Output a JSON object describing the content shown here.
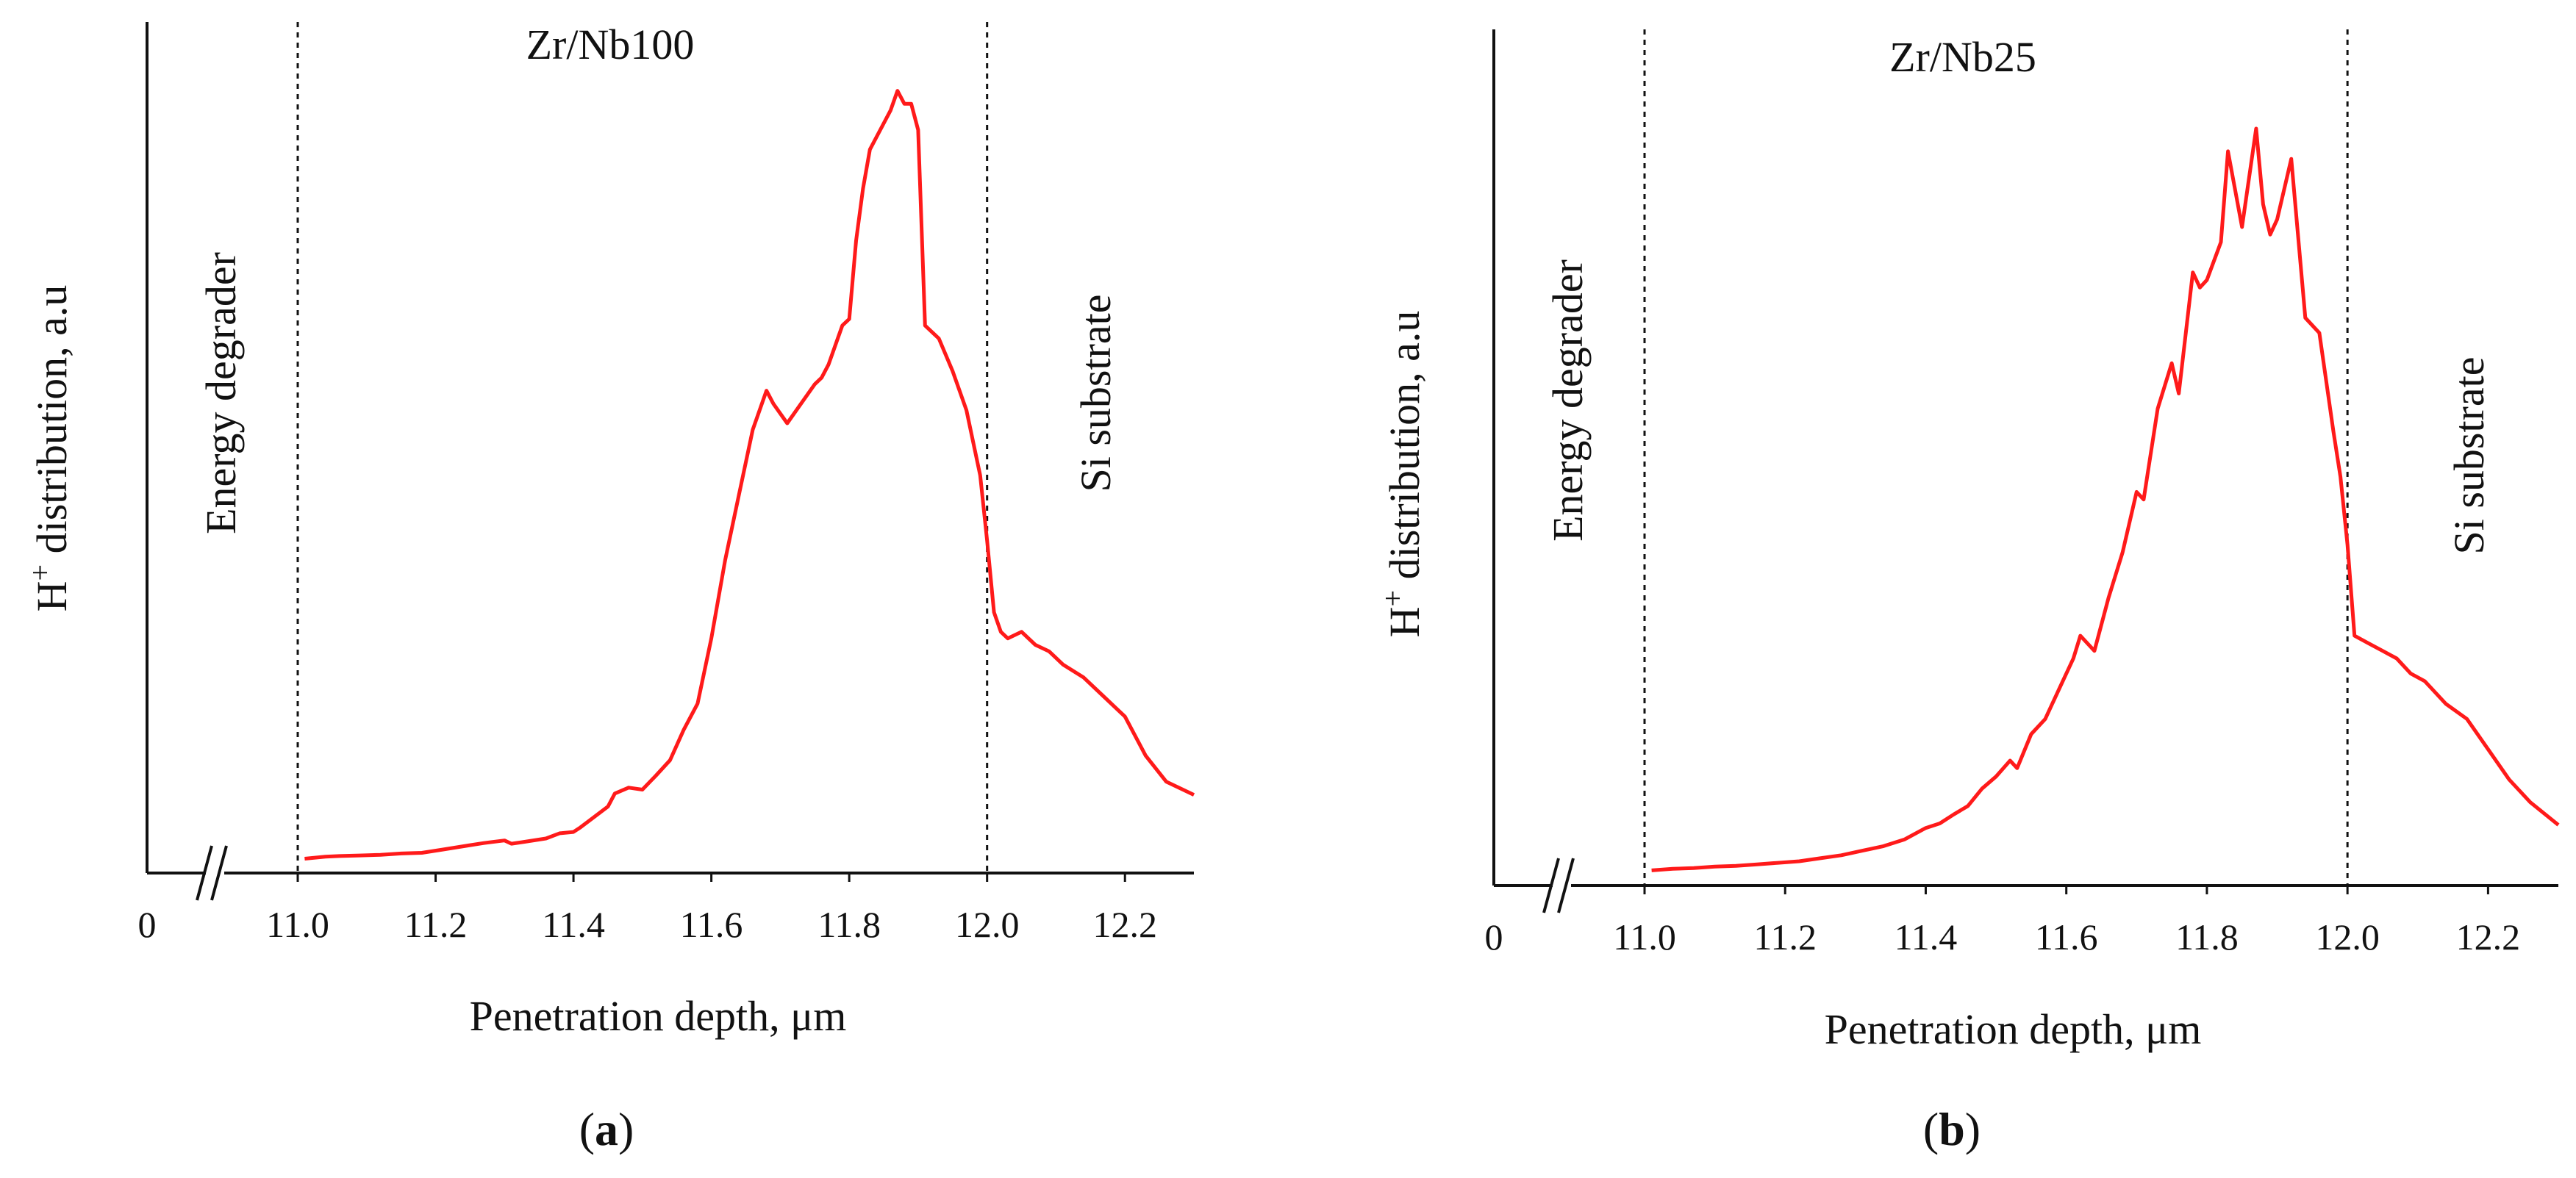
{
  "chart_data": [
    {
      "panel_label": "a",
      "type": "line",
      "title": "Zr/Nb100",
      "xlabel": "Penetration depth, μm",
      "ylabel_main": "H",
      "ylabel_sup": "+",
      "ylabel_rest": " distribution, a.u",
      "xlim": [
        11.0,
        12.3
      ],
      "ylim": [
        0,
        100
      ],
      "axis_break": true,
      "x_origin_label": "0",
      "xticks": [
        11.0,
        11.2,
        11.4,
        11.6,
        11.8,
        12.0,
        12.2
      ],
      "xtick_labels": [
        "11.0",
        "11.2",
        "11.4",
        "11.6",
        "11.8",
        "12.0",
        "12.2"
      ],
      "region_boundaries": [
        11.0,
        12.0
      ],
      "region_labels": [
        "Energy degrader",
        "Si substrate"
      ],
      "line_color": "#ff1a1a",
      "x": [
        11.01,
        11.04,
        11.06,
        11.09,
        11.12,
        11.15,
        11.18,
        11.21,
        11.24,
        11.27,
        11.3,
        11.31,
        11.33,
        11.36,
        11.38,
        11.4,
        11.41,
        11.43,
        11.45,
        11.46,
        11.48,
        11.5,
        11.52,
        11.54,
        11.56,
        11.58,
        11.6,
        11.62,
        11.64,
        11.66,
        11.68,
        11.69,
        11.71,
        11.73,
        11.75,
        11.76,
        11.77,
        11.78,
        11.79,
        11.8,
        11.81,
        11.82,
        11.83,
        11.85,
        11.86,
        11.87,
        11.88,
        11.89,
        11.9,
        11.91,
        11.93,
        11.95,
        11.97,
        11.99,
        12.0,
        12.01,
        12.02,
        12.03,
        12.05,
        12.07,
        12.09,
        12.11,
        12.14,
        12.17,
        12.2,
        12.23,
        12.26,
        12.3
      ],
      "y": [
        2.2,
        2.5,
        2.6,
        2.7,
        2.8,
        3.0,
        3.1,
        3.6,
        4.1,
        4.6,
        5.0,
        4.5,
        4.8,
        5.3,
        6.1,
        6.3,
        7.0,
        8.6,
        10.2,
        12.2,
        13.1,
        12.8,
        15.0,
        17.3,
        22.0,
        26.0,
        36.0,
        48.0,
        58.0,
        68.0,
        74.0,
        72.0,
        69.0,
        72.0,
        75.0,
        76.0,
        78.0,
        81.0,
        84.0,
        85.0,
        97.0,
        105.0,
        111.0,
        115.0,
        117.0,
        120.0,
        118.0,
        118.0,
        114.0,
        84.0,
        82.0,
        77.0,
        71.0,
        61.0,
        51.0,
        40.0,
        37.0,
        36.0,
        37.0,
        35.0,
        34.0,
        32.0,
        30.0,
        27.0,
        24.0,
        18.0,
        14.0,
        12.0
      ]
    },
    {
      "panel_label": "b",
      "type": "line",
      "title": "Zr/Nb25",
      "xlabel": "Penetration depth, μm",
      "ylabel_main": "H",
      "ylabel_sup": "+",
      "ylabel_rest": " distribution, a.u",
      "xlim": [
        11.0,
        12.3
      ],
      "ylim": [
        0,
        100
      ],
      "axis_break": true,
      "x_origin_label": "0",
      "xticks": [
        11.0,
        11.2,
        11.4,
        11.6,
        11.8,
        12.0,
        12.2
      ],
      "xtick_labels": [
        "11.0",
        "11.2",
        "11.4",
        "11.6",
        "11.8",
        "12.0",
        "12.2"
      ],
      "region_boundaries": [
        11.0,
        12.0
      ],
      "region_labels": [
        "Energy degrader",
        "Si substrate"
      ],
      "line_color": "#ff1a1a",
      "x": [
        11.01,
        11.04,
        11.07,
        11.1,
        11.13,
        11.16,
        11.19,
        11.22,
        11.25,
        11.28,
        11.31,
        11.34,
        11.37,
        11.4,
        11.42,
        11.44,
        11.46,
        11.48,
        11.5,
        11.52,
        11.53,
        11.55,
        11.57,
        11.59,
        11.61,
        11.62,
        11.64,
        11.66,
        11.68,
        11.7,
        11.71,
        11.73,
        11.75,
        11.76,
        11.78,
        11.79,
        11.8,
        11.82,
        11.83,
        11.85,
        11.87,
        11.88,
        11.89,
        11.9,
        11.92,
        11.94,
        11.96,
        11.98,
        11.99,
        12.0,
        12.01,
        12.03,
        12.05,
        12.07,
        12.09,
        12.11,
        12.14,
        12.17,
        12.2,
        12.23,
        12.26,
        12.3
      ],
      "y": [
        2.0,
        2.2,
        2.3,
        2.5,
        2.6,
        2.8,
        3.0,
        3.2,
        3.6,
        4.0,
        4.6,
        5.2,
        6.1,
        7.6,
        8.2,
        9.4,
        10.5,
        12.8,
        14.4,
        16.5,
        15.5,
        20.0,
        22.0,
        26.0,
        30.0,
        33.0,
        31.0,
        38.0,
        44.0,
        52.0,
        51.0,
        63.0,
        69.0,
        65.0,
        81.0,
        79.0,
        80.0,
        85.0,
        97.0,
        87.0,
        100.0,
        90.0,
        86.0,
        88.0,
        96.0,
        75.0,
        73.0,
        60.0,
        54.0,
        45.0,
        33.0,
        32.0,
        31.0,
        30.0,
        28.0,
        27.0,
        24.0,
        22.0,
        18.0,
        14.0,
        11.0,
        8.0
      ]
    }
  ]
}
